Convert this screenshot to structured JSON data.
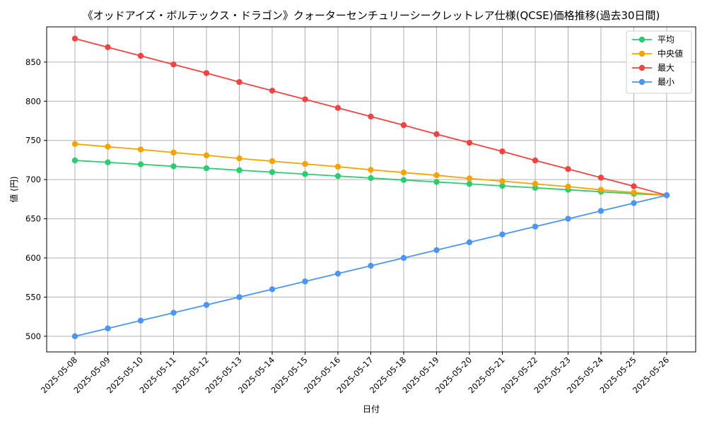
{
  "chart_data": {
    "type": "line",
    "title": "《オッドアイズ・ボルテックス・ドラゴン》クォーターセンチュリーシークレットレア仕様(QCSE)価格推移(過去30日間)",
    "xlabel": "日付",
    "ylabel": "値 (円)",
    "x": [
      "2025-05-08",
      "2025-05-09",
      "2025-05-10",
      "2025-05-11",
      "2025-05-12",
      "2025-05-13",
      "2025-05-14",
      "2025-05-15",
      "2025-05-16",
      "2025-05-17",
      "2025-05-18",
      "2025-05-19",
      "2025-05-20",
      "2025-05-21",
      "2025-05-22",
      "2025-05-23",
      "2025-05-24",
      "2025-05-25",
      "2025-05-26"
    ],
    "ylim": [
      480,
      895
    ],
    "yticks": [
      500,
      550,
      600,
      650,
      700,
      750,
      800,
      850
    ],
    "grid": true,
    "legend_position": "top-right",
    "series": [
      {
        "name": "平均",
        "color": "#2ecc71",
        "values": [
          724.5,
          722,
          719.5,
          717,
          714.5,
          712,
          709.5,
          707,
          704.5,
          702,
          699.5,
          697,
          694.5,
          692,
          689.5,
          687,
          684.5,
          682,
          680
        ]
      },
      {
        "name": "中央値",
        "color": "#f5a300",
        "values": [
          745.5,
          742,
          738.5,
          734.5,
          731,
          727,
          723.5,
          720,
          716.5,
          712.5,
          709,
          705.5,
          701.5,
          698,
          694.5,
          691,
          687,
          683.5,
          680
        ]
      },
      {
        "name": "最大",
        "color": "#ef4444",
        "values": [
          880,
          869,
          858,
          847,
          836,
          824.5,
          813.5,
          802.5,
          791.5,
          780.5,
          769.5,
          758,
          747,
          736,
          724.5,
          713.5,
          702.5,
          691.5,
          680
        ]
      },
      {
        "name": "最小",
        "color": "#4a96f2",
        "values": [
          500,
          510,
          520,
          530,
          540,
          550,
          560,
          570,
          580,
          590,
          600,
          610,
          620,
          630,
          640,
          650,
          660,
          670,
          680
        ]
      }
    ]
  }
}
